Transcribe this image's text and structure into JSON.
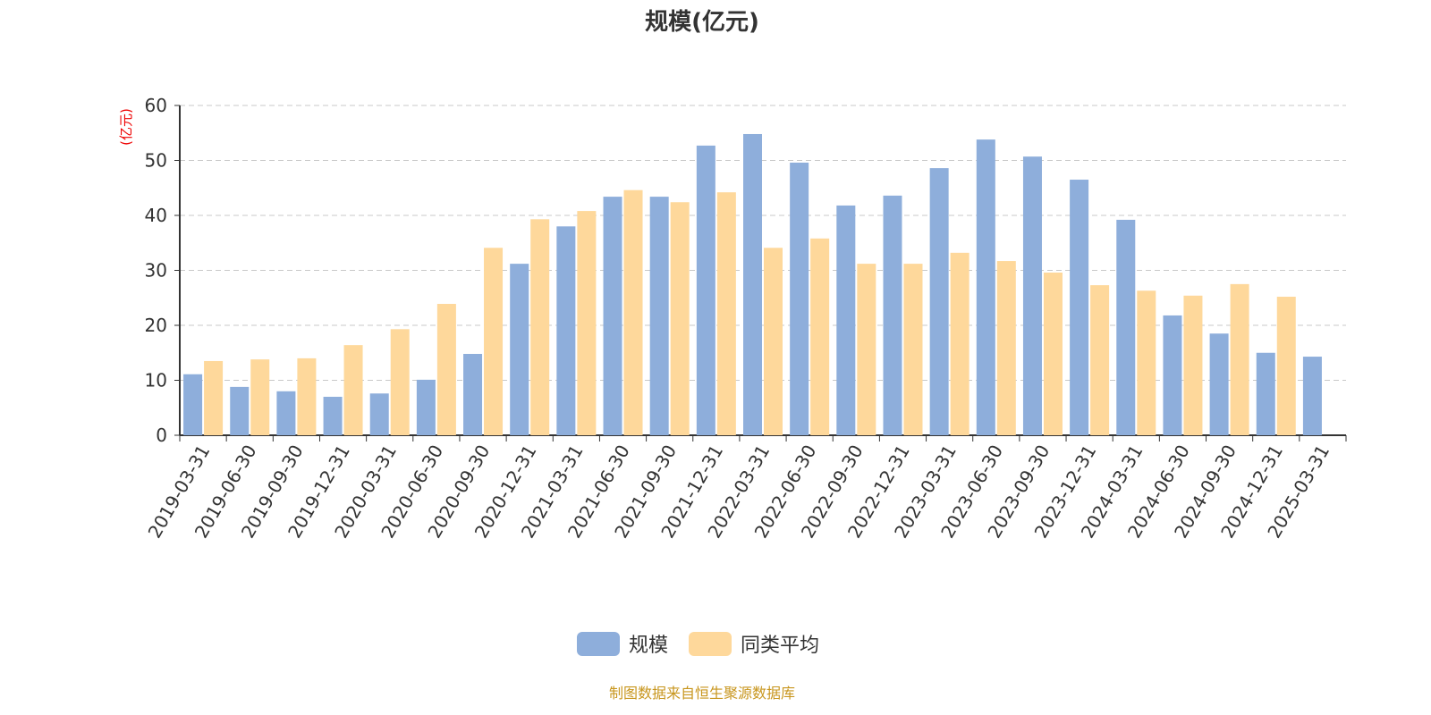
{
  "chart_data": {
    "type": "bar",
    "title": "规模(亿元)",
    "ylabel": "(亿元)",
    "xlabel": "",
    "ylim": [
      0,
      60
    ],
    "yticks": [
      0,
      10,
      20,
      30,
      40,
      50,
      60
    ],
    "grid": true,
    "legend_position": "bottom",
    "categories": [
      "2019-03-31",
      "2019-06-30",
      "2019-09-30",
      "2019-12-31",
      "2020-03-31",
      "2020-06-30",
      "2020-09-30",
      "2020-12-31",
      "2021-03-31",
      "2021-06-30",
      "2021-09-30",
      "2021-12-31",
      "2022-03-31",
      "2022-06-30",
      "2022-09-30",
      "2022-12-31",
      "2023-03-31",
      "2023-06-30",
      "2023-09-30",
      "2023-12-31",
      "2024-03-31",
      "2024-06-30",
      "2024-09-30",
      "2024-12-31",
      "2025-03-31"
    ],
    "series": [
      {
        "name": "规模",
        "color": "#8eaedb",
        "values": [
          11.1,
          8.8,
          8.0,
          7.0,
          7.6,
          10.1,
          14.8,
          31.2,
          38.0,
          43.4,
          43.4,
          52.7,
          54.8,
          49.6,
          41.8,
          43.6,
          48.6,
          53.8,
          50.7,
          46.5,
          39.2,
          21.8,
          18.5,
          15.0,
          14.3
        ]
      },
      {
        "name": "同类平均",
        "color": "#fed89b",
        "values": [
          13.5,
          13.8,
          14.0,
          16.4,
          19.3,
          23.9,
          34.1,
          39.3,
          40.8,
          44.6,
          42.4,
          44.2,
          34.1,
          35.8,
          31.2,
          31.2,
          33.2,
          31.7,
          29.6,
          27.3,
          26.3,
          25.4,
          27.5,
          25.2,
          null
        ]
      }
    ]
  },
  "footer": "制图数据来自恒生聚源数据库"
}
